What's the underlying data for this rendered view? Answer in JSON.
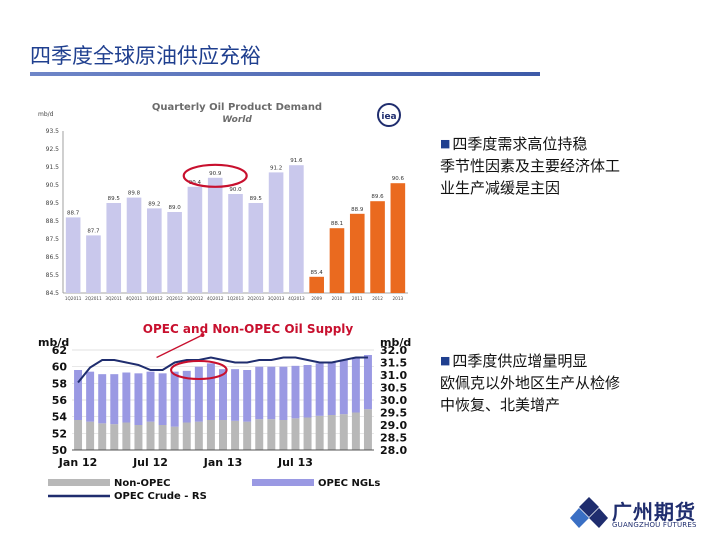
{
  "page": {
    "title": "四季度全球原油供应充裕",
    "note1_lines": [
      "四季度需求高位持稳",
      "季节性因素及主要经济体工",
      "业生产减缓是主因"
    ],
    "note2_lines": [
      "四季度供应增量明显",
      "欧佩克以外地区生产从检修",
      "中恢复、北美增产"
    ],
    "bullet": "■",
    "logo_cn": "广州期货",
    "logo_en": "GUANGZHOU FUTURES",
    "colors": {
      "title": "#1f3f8f",
      "accent_red": "#c8102e",
      "orange": "#ea6a1f",
      "lavender": "#c9c8ec"
    }
  },
  "chart_data": [
    {
      "type": "bar",
      "title": "Quarterly Oil Product Demand",
      "subtitle": "World",
      "ylabel": "mb/d",
      "badge": "iea",
      "ylim": [
        84.5,
        93.5
      ],
      "yticks": [
        "93.5",
        "92.5",
        "91.5",
        "90.5",
        "89.5",
        "88.5",
        "87.5",
        "86.5",
        "85.5",
        "84.5"
      ],
      "categories": [
        "1Q2011",
        "2Q2011",
        "3Q2011",
        "4Q2011",
        "1Q2012",
        "2Q2012",
        "3Q2012",
        "4Q2012",
        "1Q2013",
        "2Q2013",
        "3Q2013",
        "4Q2013",
        "2009",
        "2010",
        "2011",
        "2012",
        "2013"
      ],
      "category_labels": [
        "1Q2011",
        "2Q2011",
        "3Q2011",
        "4Q2011",
        "1Q2012",
        "2Q2012",
        "3Q2012",
        "4Q2012",
        "1Q2013",
        "2Q2013",
        "3Q2013",
        "4Q2013",
        "2009",
        "2010",
        "2011",
        "2012",
        "2013"
      ],
      "values": [
        88.7,
        87.7,
        89.5,
        89.8,
        89.2,
        89.0,
        90.4,
        90.9,
        90.0,
        89.5,
        91.2,
        91.6,
        85.4,
        88.1,
        88.9,
        89.6,
        90.6
      ],
      "value_labels": [
        "88.7",
        "87.7",
        "89.5",
        "89.8",
        "89.2",
        "89.0",
        "90.4",
        "90.9",
        "90.0",
        "89.5",
        "91.2",
        "91.6",
        "85.4",
        "88.1",
        "88.9",
        "89.6",
        "90.6"
      ],
      "series_colors": [
        "quarterly",
        "quarterly",
        "quarterly",
        "quarterly",
        "quarterly",
        "quarterly",
        "quarterly",
        "quarterly",
        "quarterly",
        "quarterly",
        "quarterly",
        "quarterly",
        "annual",
        "annual",
        "annual",
        "annual",
        "annual"
      ],
      "highlight": "4Q2012"
    },
    {
      "type": "bar",
      "title": "OPEC and Non-OPEC Oil Supply",
      "ylabel_left": "mb/d",
      "ylabel_right": "mb/d",
      "ylim_left": [
        50,
        62
      ],
      "ylim_right": [
        28.0,
        32.0
      ],
      "yticks_left": [
        "62",
        "60",
        "58",
        "56",
        "54",
        "52",
        "50"
      ],
      "yticks_right": [
        "32.0",
        "31.5",
        "31.0",
        "30.5",
        "30.0",
        "29.5",
        "29.0",
        "28.5",
        "28.0"
      ],
      "xtick_labels": [
        "Jan 12",
        "Jul 12",
        "Jan 13",
        "Jul 13"
      ],
      "series": [
        {
          "name": "Non-OPEC",
          "values": [
            53.6,
            53.4,
            53.2,
            53.1,
            53.3,
            53.0,
            53.4,
            53.0,
            52.8,
            53.3,
            53.4,
            53.6,
            53.6,
            53.5,
            53.4,
            53.7,
            53.7,
            53.6,
            53.8,
            53.9,
            54.1,
            54.2,
            54.3,
            54.5,
            54.9
          ]
        },
        {
          "name": "OPEC NGLs",
          "values": [
            6.0,
            6.0,
            5.9,
            6.0,
            6.0,
            6.2,
            6.0,
            6.2,
            6.6,
            6.2,
            6.6,
            6.8,
            6.1,
            6.2,
            6.2,
            6.3,
            6.3,
            6.4,
            6.3,
            6.3,
            6.3,
            6.4,
            6.5,
            6.6,
            6.5
          ]
        },
        {
          "name": "OPEC Crude - RS",
          "values": [
            30.7,
            31.3,
            31.6,
            31.6,
            31.5,
            31.4,
            31.2,
            31.2,
            31.5,
            31.6,
            31.6,
            31.7,
            31.6,
            31.5,
            31.5,
            31.6,
            31.6,
            31.7,
            31.7,
            31.6,
            31.5,
            31.5,
            31.6,
            31.7,
            31.7
          ]
        }
      ],
      "legend": [
        "Non-OPEC",
        "OPEC NGLs",
        "OPEC Crude - RS"
      ]
    }
  ]
}
